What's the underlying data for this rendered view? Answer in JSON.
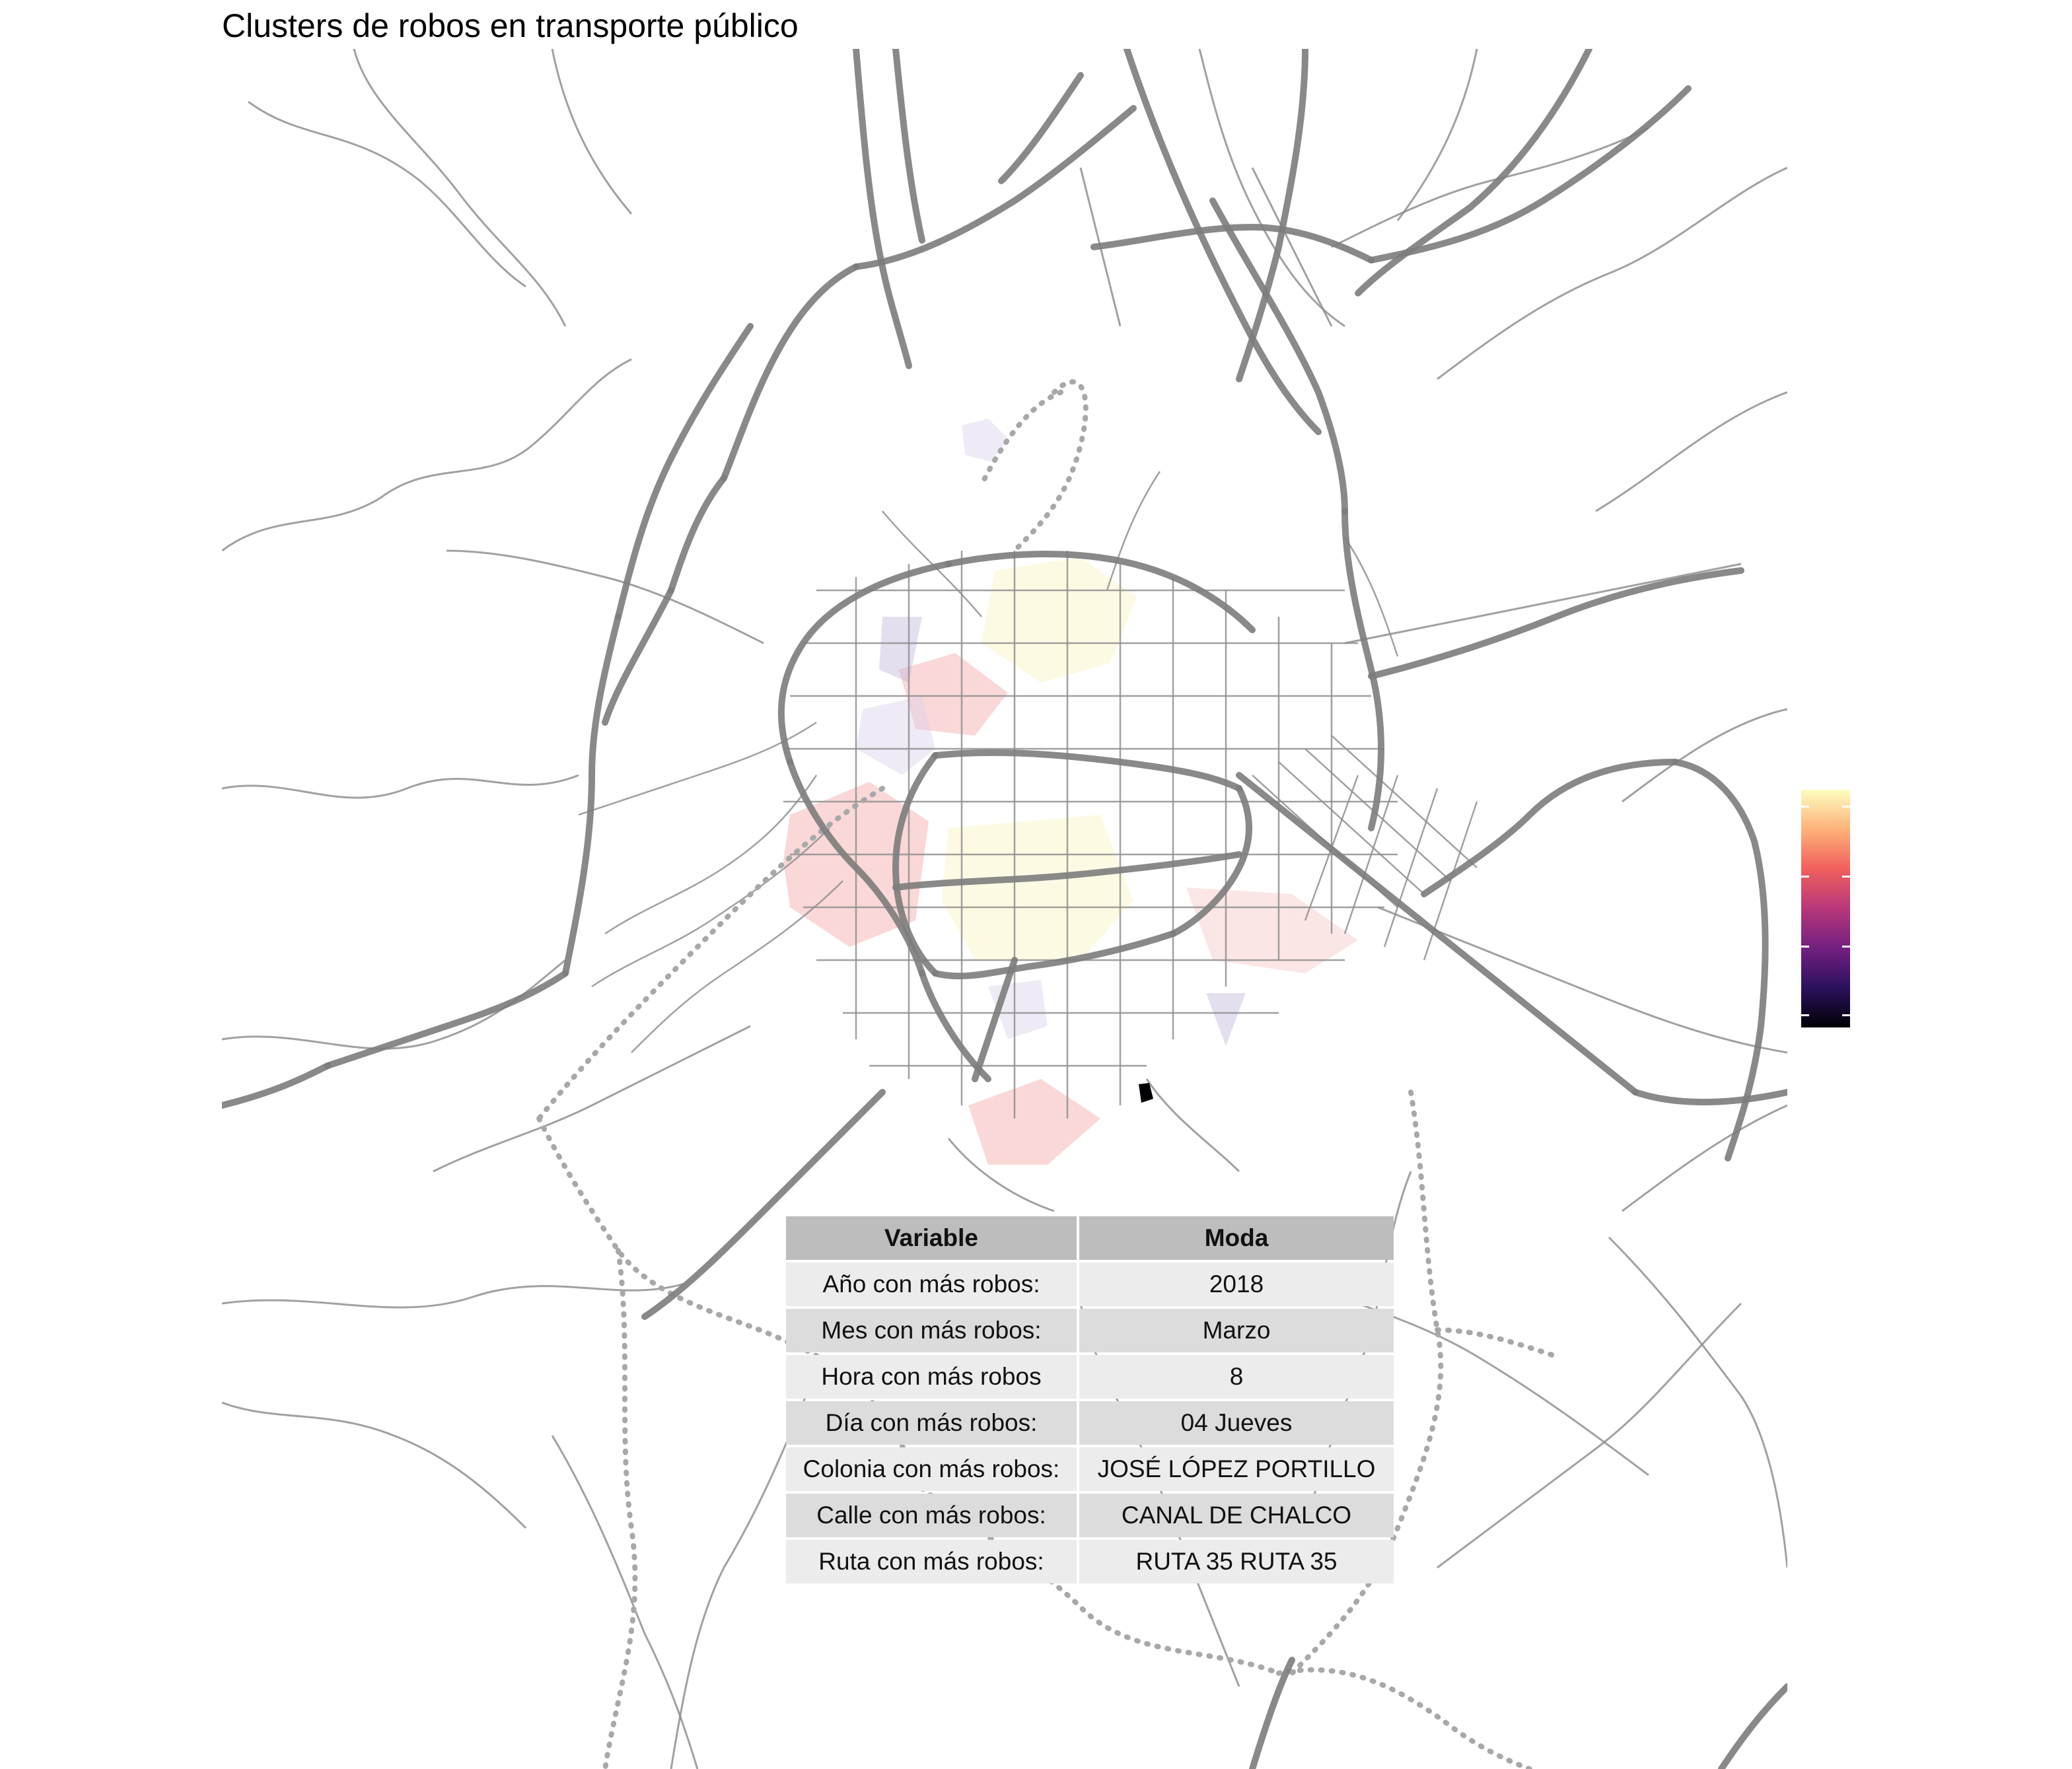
{
  "title": "Clusters de robos en transporte público",
  "legend": {
    "palette": "magma",
    "colors": [
      "#000004",
      "#2c115f",
      "#721f81",
      "#b73779",
      "#f1605d",
      "#feb078",
      "#fcfdbf"
    ],
    "tick_count": 4
  },
  "map": {
    "base_layer": "road network (gray lines)",
    "boundary_style": "dotted gray",
    "cluster_colors": [
      "#f6c1c1",
      "#fbf3c4",
      "#dcd3ea",
      "#c4b7dc",
      "#000004"
    ]
  },
  "table": {
    "headers": [
      "Variable",
      "Moda"
    ],
    "rows": [
      [
        "Año con más robos:",
        "2018"
      ],
      [
        "Mes con más robos:",
        "Marzo"
      ],
      [
        "Hora con más robos",
        "8"
      ],
      [
        "Día con más robos:",
        "04 Jueves"
      ],
      [
        "Colonia con más robos:",
        "JOSÉ LÓPEZ PORTILLO"
      ],
      [
        "Calle con más robos:",
        "CANAL DE CHALCO"
      ],
      [
        "Ruta con más robos:",
        "RUTA 35 RUTA 35"
      ]
    ]
  }
}
